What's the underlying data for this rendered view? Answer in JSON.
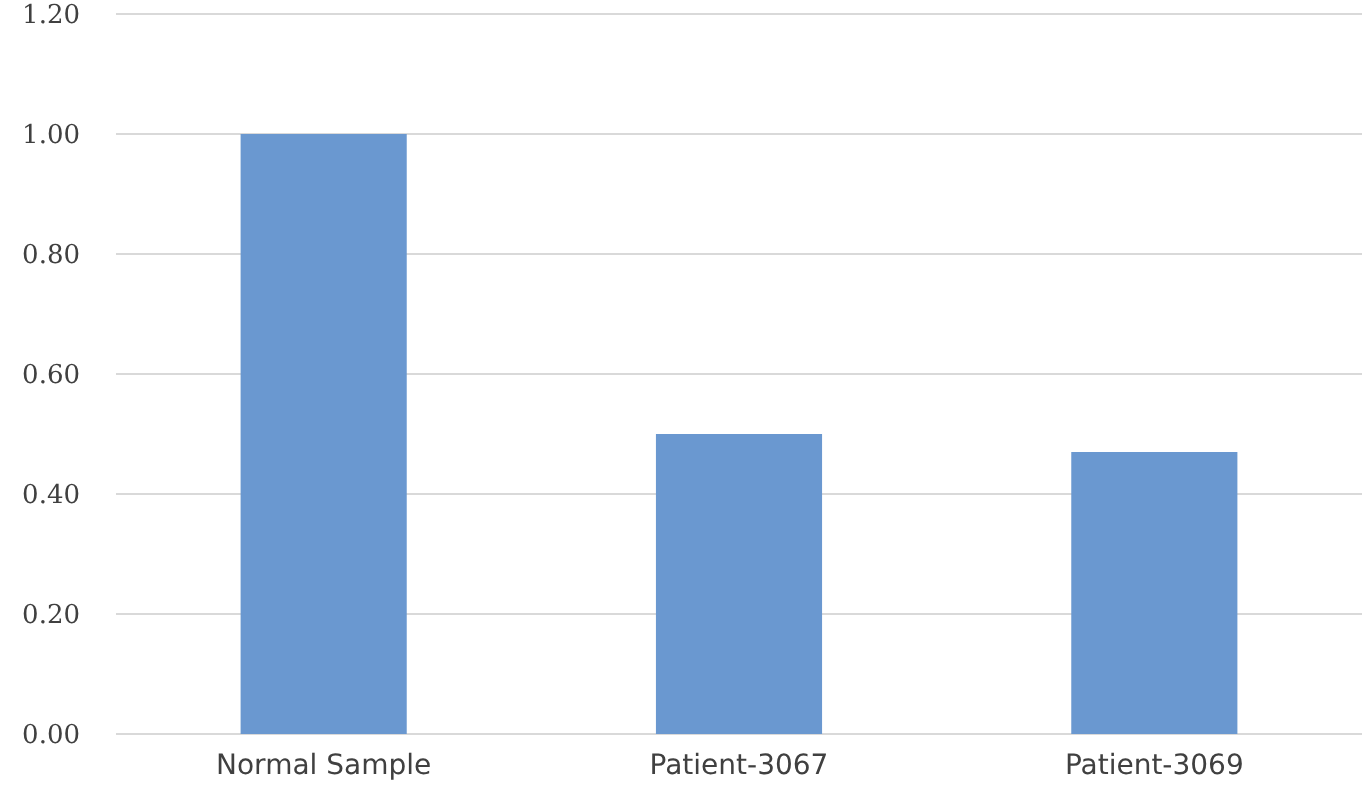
{
  "chart_data": {
    "type": "bar",
    "categories": [
      "Normal Sample",
      "Patient-3067",
      "Patient-3069"
    ],
    "values": [
      1.0,
      0.5,
      0.47
    ],
    "color": "#6a98d0",
    "ylim": [
      0,
      1.2
    ],
    "yticks": [
      {
        "value": 0,
        "label": "0.00"
      },
      {
        "value": 0.2,
        "label": "0.20"
      },
      {
        "value": 0.4,
        "label": "0.40"
      },
      {
        "value": 0.6,
        "label": "0.60"
      },
      {
        "value": 0.8,
        "label": "0.80"
      },
      {
        "value": 1.0,
        "label": "1.00"
      },
      {
        "value": 1.2,
        "label": "1.20"
      }
    ],
    "grid": "y"
  }
}
